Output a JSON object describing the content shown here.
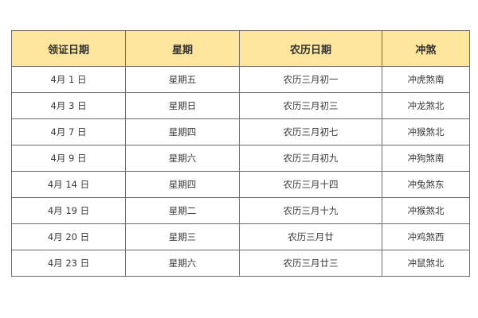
{
  "table": {
    "header_color": "#fde59c",
    "headers": [
      "领证日期",
      "星期",
      "农历日期",
      "冲煞"
    ],
    "rows": [
      [
        "4月 1 日",
        "星期五",
        "农历三月初一",
        "冲虎煞南"
      ],
      [
        "4月 3 日",
        "星期日",
        "农历三月初三",
        "冲龙煞北"
      ],
      [
        "4月 7 日",
        "星期四",
        "农历三月初七",
        "冲猴煞北"
      ],
      [
        "4月 9 日",
        "星期六",
        "农历三月初九",
        "冲狗煞南"
      ],
      [
        "4月 14 日",
        "星期四",
        "农历三月十四",
        "冲兔煞东"
      ],
      [
        "4月 19 日",
        "星期二",
        "农历三月十九",
        "冲猴煞北"
      ],
      [
        "4月 20 日",
        "星期三",
        "农历三月廿",
        "冲鸡煞西"
      ],
      [
        "4月 23 日",
        "星期六",
        "农历三月廿三",
        "冲鼠煞北"
      ]
    ]
  }
}
